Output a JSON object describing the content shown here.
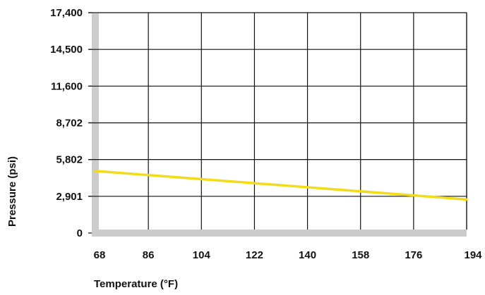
{
  "chart_data": {
    "type": "line",
    "title": "",
    "xlabel": "Temperature (°F)",
    "ylabel": "Pressure (psi)",
    "xlim": [
      68,
      194
    ],
    "ylim": [
      0,
      17400
    ],
    "x_ticks": [
      68,
      86,
      104,
      122,
      140,
      158,
      176,
      194
    ],
    "x_tick_labels": [
      "68",
      "86",
      "104",
      "122",
      "140",
      "158",
      "176",
      "194"
    ],
    "y_ticks": [
      0,
      2901,
      5802,
      8702,
      11600,
      14500,
      17400
    ],
    "y_tick_labels": [
      "0",
      "2,901",
      "5,802",
      "8,702",
      "11,600",
      "14,500",
      "17,400"
    ],
    "grid": true,
    "legend": "none",
    "colors": {
      "series": "#f2dc1a",
      "axis_band": "#cccccc",
      "grid": "#111111"
    },
    "series": [
      {
        "x": [
          68,
          194
        ],
        "values": [
          4900,
          2650
        ]
      }
    ]
  }
}
